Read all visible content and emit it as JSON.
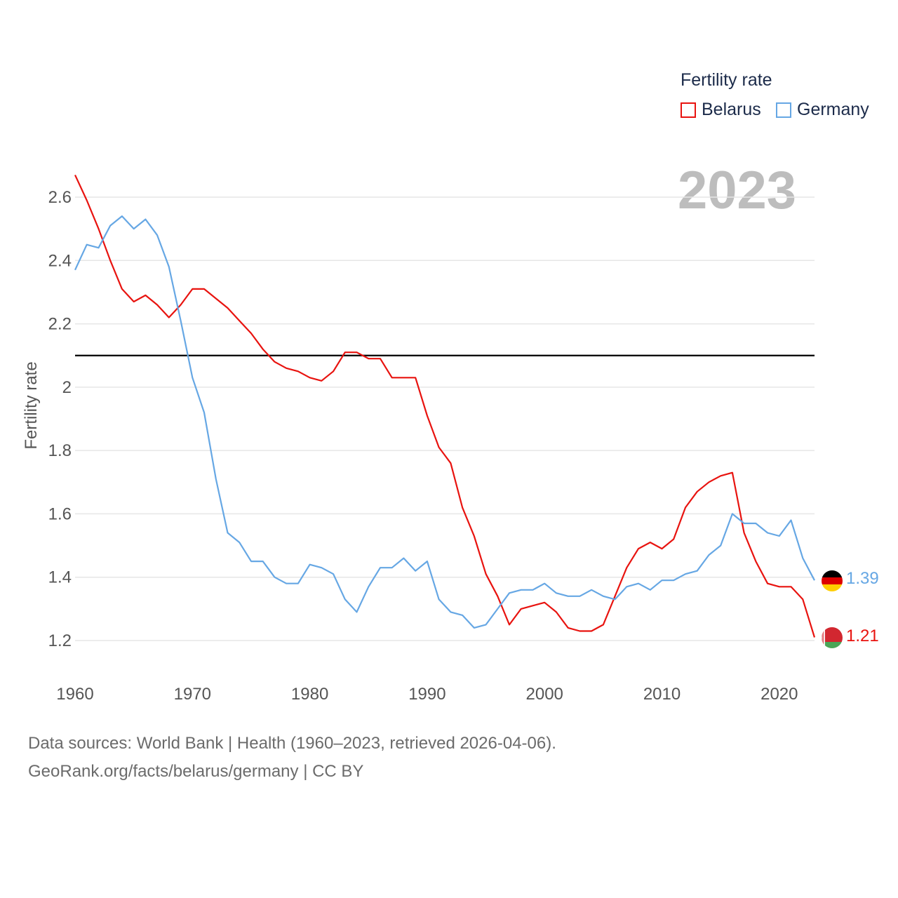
{
  "legend": {
    "title": "Fertility rate",
    "items": [
      {
        "label": "Belarus",
        "color": "#e8130f"
      },
      {
        "label": "Germany",
        "color": "#66a7e4"
      }
    ]
  },
  "current_year": "2023",
  "end_labels": {
    "germany": "1.39",
    "belarus": "1.21"
  },
  "footer": {
    "line1": "Data sources: World Bank | Health (1960–2023, retrieved 2026-04-06).",
    "line2": "GeoRank.org/facts/belarus/germany | CC BY"
  },
  "chart_data": {
    "type": "line",
    "title": "Fertility rate",
    "xlabel": "",
    "ylabel": "Fertility rate",
    "xlim": [
      1960,
      2023
    ],
    "ylim": [
      1.1,
      2.7
    ],
    "x_ticks": [
      1960,
      1970,
      1980,
      1990,
      2000,
      2010,
      2020
    ],
    "y_ticks": [
      1.2,
      1.4,
      1.6,
      1.8,
      2,
      2.2,
      2.4,
      2.6
    ],
    "y_tick_labels": [
      "1.2",
      "1.4",
      "1.6",
      "1.8",
      "2",
      "2.2",
      "2.4",
      "2.6"
    ],
    "reference_line": {
      "y": 2.1,
      "color": "#000000"
    },
    "x_start": 1960,
    "series": [
      {
        "name": "Belarus",
        "color": "#e8130f",
        "values": [
          2.67,
          2.59,
          2.5,
          2.4,
          2.31,
          2.27,
          2.29,
          2.26,
          2.22,
          2.26,
          2.31,
          2.31,
          2.28,
          2.25,
          2.21,
          2.17,
          2.12,
          2.08,
          2.06,
          2.05,
          2.03,
          2.02,
          2.05,
          2.11,
          2.11,
          2.09,
          2.09,
          2.03,
          2.03,
          2.03,
          1.91,
          1.81,
          1.76,
          1.62,
          1.53,
          1.41,
          1.34,
          1.25,
          1.3,
          1.31,
          1.32,
          1.29,
          1.24,
          1.23,
          1.23,
          1.25,
          1.34,
          1.43,
          1.49,
          1.51,
          1.49,
          1.52,
          1.62,
          1.67,
          1.7,
          1.72,
          1.73,
          1.54,
          1.45,
          1.38,
          1.37,
          1.37,
          1.33,
          1.21
        ]
      },
      {
        "name": "Germany",
        "color": "#66a7e4",
        "values": [
          2.37,
          2.45,
          2.44,
          2.51,
          2.54,
          2.5,
          2.53,
          2.48,
          2.38,
          2.21,
          2.03,
          1.92,
          1.71,
          1.54,
          1.51,
          1.45,
          1.45,
          1.4,
          1.38,
          1.38,
          1.44,
          1.43,
          1.41,
          1.33,
          1.29,
          1.37,
          1.43,
          1.43,
          1.46,
          1.42,
          1.45,
          1.33,
          1.29,
          1.28,
          1.24,
          1.25,
          1.3,
          1.35,
          1.36,
          1.36,
          1.38,
          1.35,
          1.34,
          1.34,
          1.36,
          1.34,
          1.33,
          1.37,
          1.38,
          1.36,
          1.39,
          1.39,
          1.41,
          1.42,
          1.47,
          1.5,
          1.6,
          1.57,
          1.57,
          1.54,
          1.53,
          1.58,
          1.46,
          1.39
        ]
      }
    ]
  }
}
